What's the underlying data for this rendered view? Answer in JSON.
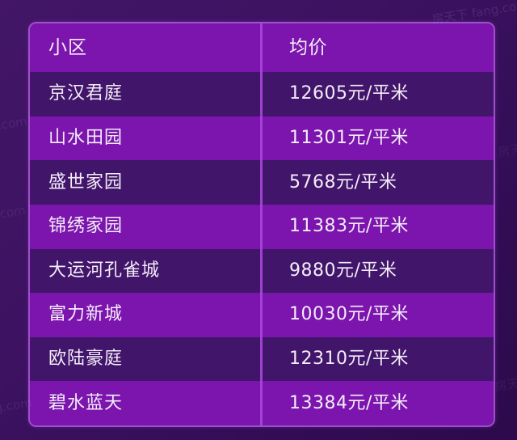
{
  "watermark": {
    "text": "房天下 fang.com",
    "partial_text": "房天下 fang.com"
  },
  "theme": {
    "page_bg_top": "#431667",
    "page_bg_bottom": "#2c0a4b",
    "header_bg": "#7b15ad",
    "row_dark_bg": "#411569",
    "row_bright_bg": "#7b15ad",
    "border_color": "#b05cdc",
    "divider_color": "#a846da",
    "text_color": "#f4ecf9"
  },
  "chart_data": {
    "type": "table",
    "title": "",
    "columns": [
      "小区",
      "均价"
    ],
    "price_unit": "元/平米",
    "rows": [
      {
        "name": "京汉君庭",
        "price": "12605元/平米"
      },
      {
        "name": "山水田园",
        "price": "11301元/平米"
      },
      {
        "name": "盛世家园",
        "price": "5768元/平米"
      },
      {
        "name": "锦绣家园",
        "price": "11383元/平米"
      },
      {
        "name": "大运河孔雀城",
        "price": "9880元/平米"
      },
      {
        "name": "富力新城",
        "price": "10030元/平米"
      },
      {
        "name": "欧陆豪庭",
        "price": "12310元/平米"
      },
      {
        "name": "碧水蓝天",
        "price": "13384元/平米"
      }
    ],
    "prices_numeric": [
      12605,
      11301,
      5768,
      11383,
      9880,
      10030,
      12310,
      13384
    ]
  }
}
